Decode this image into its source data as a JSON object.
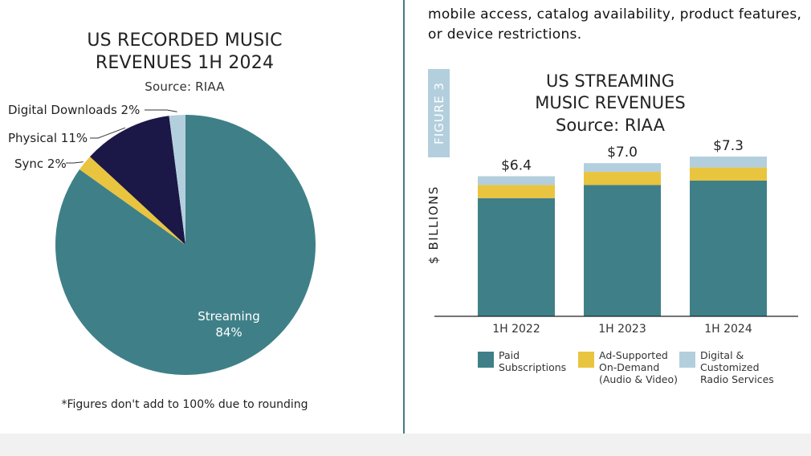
{
  "left": {
    "title_line1": "US RECORDED MUSIC",
    "title_line2": "REVENUES 1H 2024",
    "source": "Source: RIAA",
    "footnote": "*Figures don't add to 100% due to rounding"
  },
  "right": {
    "intro_line1": "mobile access, catalog availability, product features,",
    "intro_line2": "or device restrictions.",
    "figure_tag": "FIGURE 3",
    "title_line1": "US STREAMING",
    "title_line2": "MUSIC REVENUES",
    "source": "Source: RIAA"
  },
  "chart_data": [
    {
      "type": "pie",
      "title": "US RECORDED MUSIC REVENUES 1H 2024",
      "slices": [
        {
          "label": "Streaming",
          "value": 84,
          "display": "84%",
          "color": "#3f8088"
        },
        {
          "label": "Sync",
          "value": 2,
          "display": "Sync 2%",
          "color": "#e9c43f"
        },
        {
          "label": "Physical",
          "value": 11,
          "display": "Physical 11%",
          "color": "#1b1747"
        },
        {
          "label": "Digital Downloads",
          "value": 2,
          "display": "Digital Downloads 2%",
          "color": "#b3cfdd"
        }
      ]
    },
    {
      "type": "bar",
      "stacked": true,
      "title": "US STREAMING MUSIC REVENUES",
      "ylabel": "$ BILLIONS",
      "categories": [
        "1H 2022",
        "1H 2023",
        "1H 2024"
      ],
      "totals_labels": [
        "$6.4",
        "$7.0",
        "$7.3"
      ],
      "ylim": [
        0,
        7.3
      ],
      "series": [
        {
          "name": "Paid\nSubscriptions",
          "values": [
            5.4,
            6.0,
            6.2
          ],
          "color": "#3f8088"
        },
        {
          "name": "Ad-Supported\nOn-Demand\n(Audio & Video)",
          "values": [
            0.6,
            0.6,
            0.6
          ],
          "color": "#e9c43f"
        },
        {
          "name": "Digital &\nCustomized\nRadio Services",
          "values": [
            0.4,
            0.4,
            0.5
          ],
          "color": "#b3cfdd"
        }
      ]
    }
  ]
}
